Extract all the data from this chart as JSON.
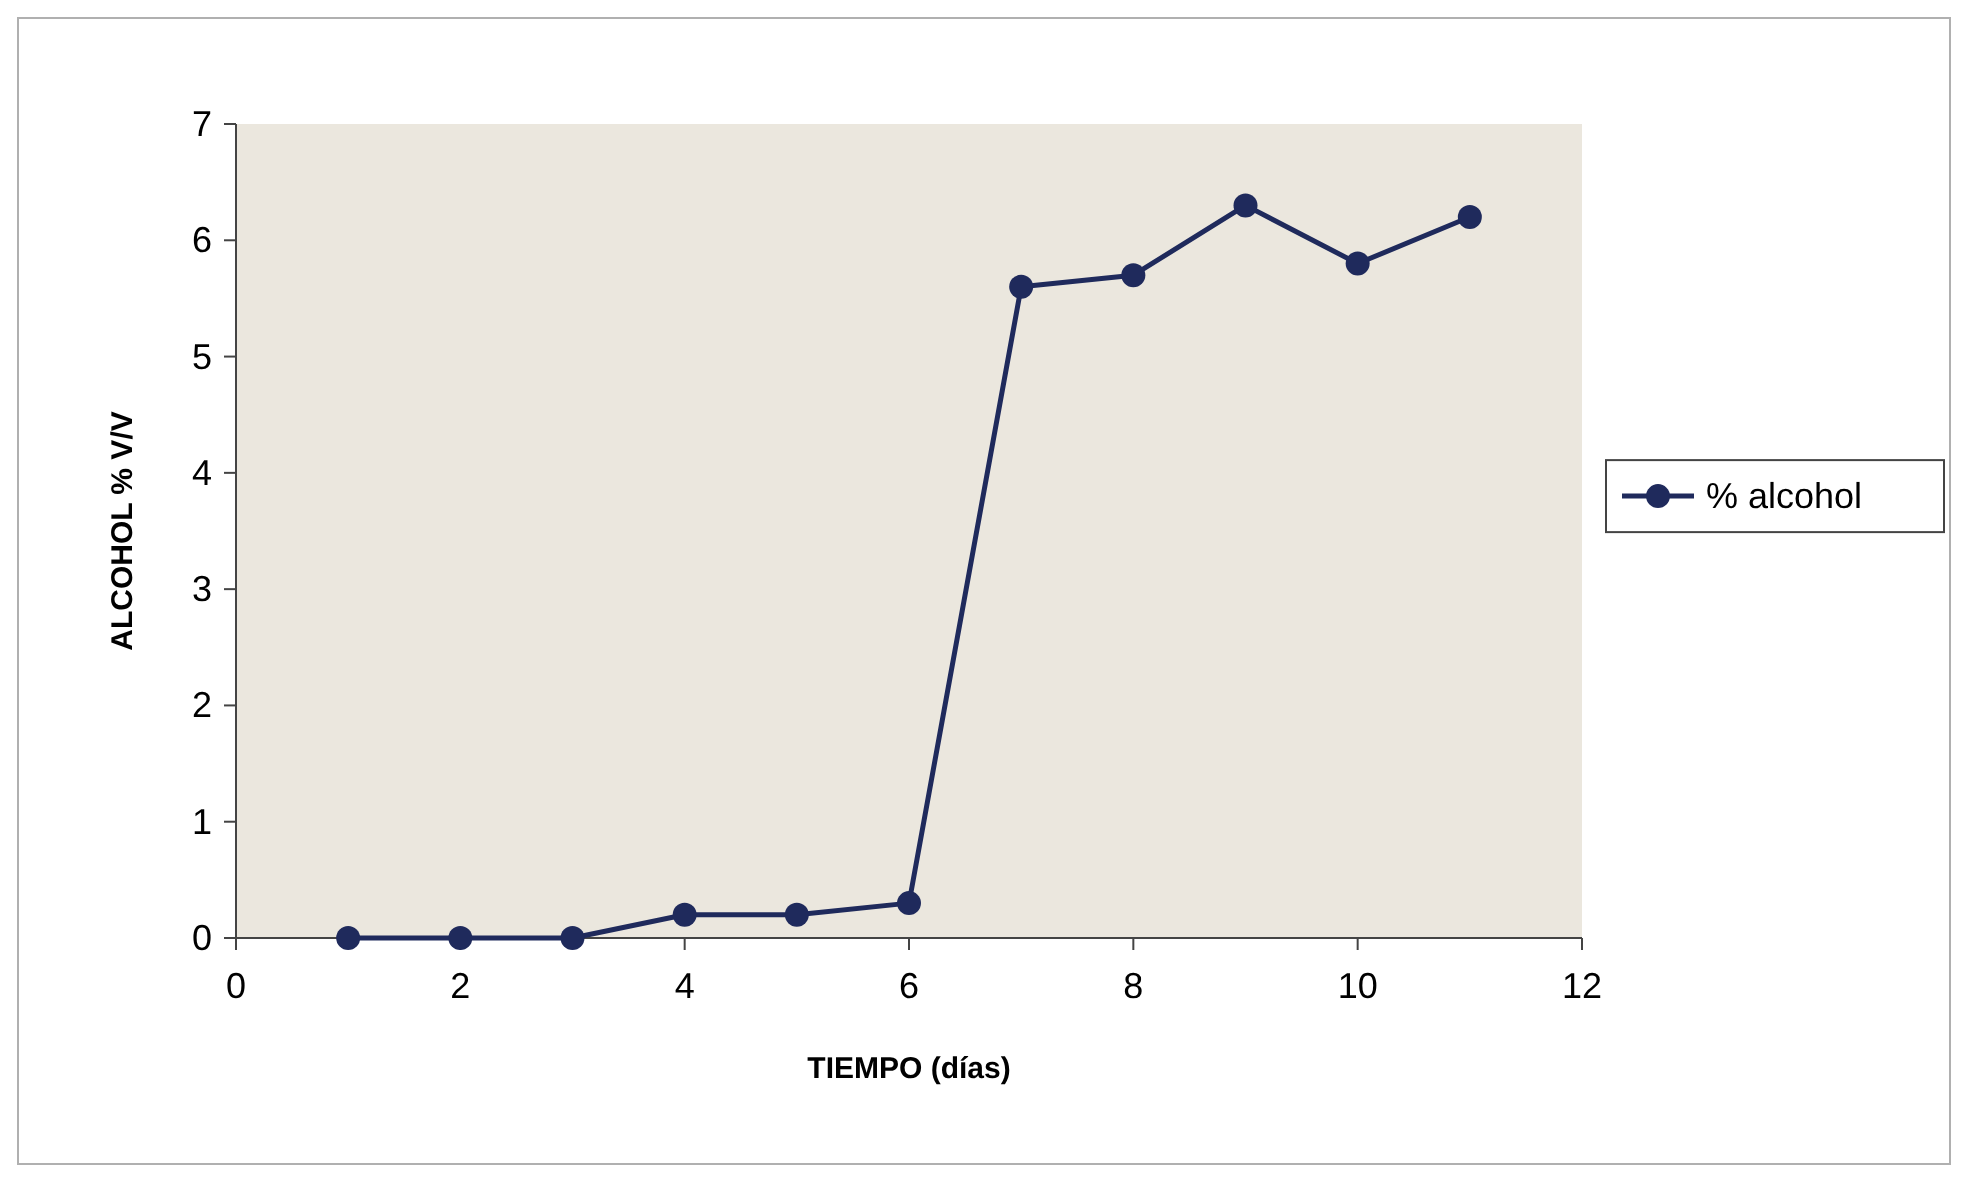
{
  "chart_data": {
    "type": "line",
    "xlabel": "TIEMPO (días)",
    "ylabel": "ALCOHOL % V/V",
    "xlim": [
      0,
      12
    ],
    "xticks": [
      0,
      2,
      4,
      6,
      8,
      10,
      12
    ],
    "ylim": [
      0,
      7
    ],
    "yticks": [
      0,
      1,
      2,
      3,
      4,
      5,
      6,
      7
    ],
    "x": [
      1,
      2,
      3,
      4,
      5,
      6,
      7,
      8,
      9,
      10,
      11
    ],
    "series": [
      {
        "name": "% alcohol",
        "color": "#1f2a5c",
        "values": [
          0,
          0,
          0,
          0.2,
          0.2,
          0.3,
          5.6,
          5.7,
          6.3,
          5.8,
          6.2
        ]
      }
    ],
    "marker": "circle",
    "line_style": "solid",
    "grid": false,
    "legend": "right"
  }
}
